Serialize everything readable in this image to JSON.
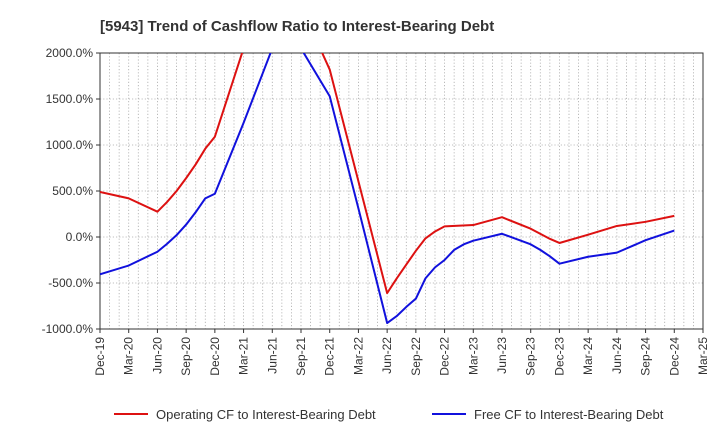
{
  "chart_data": {
    "type": "line",
    "title": "[5943]  Trend of Cashflow Ratio to Interest-Bearing Debt",
    "xlabel": "",
    "ylabel": "",
    "ylim": [
      -1000,
      2000
    ],
    "y_ticks": [
      "2000.0%",
      "1500.0%",
      "1000.0%",
      "500.0%",
      "0.0%",
      "-500.0%",
      "-1000.0%"
    ],
    "y_tick_values": [
      2000,
      1500,
      1000,
      500,
      0,
      -500,
      -1000
    ],
    "x_ticks": [
      "Dec-19",
      "Mar-20",
      "Jun-20",
      "Sep-20",
      "Dec-20",
      "Mar-21",
      "Jun-21",
      "Sep-21",
      "Dec-21",
      "Mar-22",
      "Jun-22",
      "Sep-22",
      "Dec-22",
      "Mar-23",
      "Jun-23",
      "Sep-23",
      "Dec-23",
      "Mar-24",
      "Jun-24",
      "Sep-24",
      "Dec-24",
      "Mar-25"
    ],
    "x_quarters": [
      "Dec-19",
      "Jan-20",
      "Feb-20",
      "Mar-20",
      "Apr-20",
      "May-20",
      "Jun-20",
      "Jul-20",
      "Aug-20",
      "Sep-20",
      "Oct-20",
      "Nov-20",
      "Dec-20",
      "Jan-21",
      "Feb-21",
      "Mar-21",
      "Apr-21",
      "May-21",
      "Jun-21",
      "Jul-21",
      "Aug-21",
      "Sep-21",
      "Oct-21",
      "Nov-21",
      "Dec-21",
      "Jan-22",
      "Feb-22",
      "Mar-22",
      "Apr-22",
      "May-22",
      "Jun-22",
      "Jul-22",
      "Aug-22",
      "Sep-22",
      "Oct-22",
      "Nov-22",
      "Dec-22",
      "Jan-23",
      "Feb-23",
      "Mar-23",
      "Apr-23",
      "May-23",
      "Jun-23",
      "Jul-23",
      "Aug-23",
      "Sep-23",
      "Oct-23",
      "Nov-23",
      "Dec-23",
      "Jan-24",
      "Feb-24",
      "Mar-24",
      "Apr-24",
      "May-24",
      "Jun-24",
      "Jul-24",
      "Aug-24",
      "Sep-24",
      "Oct-24",
      "Nov-24",
      "Dec-24",
      "Jan-25",
      "Feb-25",
      "Mar-25"
    ],
    "grid": true,
    "legend_position": "bottom",
    "series": [
      {
        "name": "Operating CF to Interest-Bearing Debt",
        "color": "#dd1111",
        "points": [
          {
            "x": "Dec-19",
            "y": 490
          },
          {
            "x": "Mar-20",
            "y": 420
          },
          {
            "x": "Jun-20",
            "y": 275
          },
          {
            "x": "Jul-20",
            "y": 380
          },
          {
            "x": "Aug-20",
            "y": 500
          },
          {
            "x": "Sep-20",
            "y": 640
          },
          {
            "x": "Oct-20",
            "y": 790
          },
          {
            "x": "Nov-20",
            "y": 960
          },
          {
            "x": "Dec-20",
            "y": 1090
          },
          {
            "x": "Mar-21",
            "y": 2050
          },
          {
            "x": "Nov-21",
            "y": 2050
          },
          {
            "x": "Dec-21",
            "y": 1820
          },
          {
            "x": "Jun-22",
            "y": -610
          },
          {
            "x": "Jul-22",
            "y": -450
          },
          {
            "x": "Aug-22",
            "y": -300
          },
          {
            "x": "Sep-22",
            "y": -150
          },
          {
            "x": "Oct-22",
            "y": -15
          },
          {
            "x": "Nov-22",
            "y": 60
          },
          {
            "x": "Dec-22",
            "y": 115
          },
          {
            "x": "Mar-23",
            "y": 130
          },
          {
            "x": "Jun-23",
            "y": 215
          },
          {
            "x": "Sep-23",
            "y": 90
          },
          {
            "x": "Nov-23",
            "y": -20
          },
          {
            "x": "Dec-23",
            "y": -65
          },
          {
            "x": "Mar-24",
            "y": 25
          },
          {
            "x": "Jun-24",
            "y": 120
          },
          {
            "x": "Sep-24",
            "y": 165
          },
          {
            "x": "Dec-24",
            "y": 230
          }
        ]
      },
      {
        "name": "Free CF to Interest-Bearing Debt",
        "color": "#1111dd",
        "points": [
          {
            "x": "Dec-19",
            "y": -405
          },
          {
            "x": "Mar-20",
            "y": -310
          },
          {
            "x": "Jun-20",
            "y": -160
          },
          {
            "x": "Jul-20",
            "y": -75
          },
          {
            "x": "Aug-20",
            "y": 20
          },
          {
            "x": "Sep-20",
            "y": 135
          },
          {
            "x": "Oct-20",
            "y": 270
          },
          {
            "x": "Nov-20",
            "y": 420
          },
          {
            "x": "Dec-20",
            "y": 470
          },
          {
            "x": "Mar-21",
            "y": 1240
          },
          {
            "x": "Jun-21",
            "y": 2050
          },
          {
            "x": "Sep-21",
            "y": 2050
          },
          {
            "x": "Dec-21",
            "y": 1530
          },
          {
            "x": "Mar-22",
            "y": 310
          },
          {
            "x": "Jun-22",
            "y": -935
          },
          {
            "x": "Jul-22",
            "y": -860
          },
          {
            "x": "Aug-22",
            "y": -760
          },
          {
            "x": "Sep-22",
            "y": -670
          },
          {
            "x": "Oct-22",
            "y": -450
          },
          {
            "x": "Nov-22",
            "y": -330
          },
          {
            "x": "Dec-22",
            "y": -250
          },
          {
            "x": "Jan-23",
            "y": -140
          },
          {
            "x": "Feb-23",
            "y": -80
          },
          {
            "x": "Mar-23",
            "y": -40
          },
          {
            "x": "Jun-23",
            "y": 35
          },
          {
            "x": "Sep-23",
            "y": -80
          },
          {
            "x": "Oct-23",
            "y": -140
          },
          {
            "x": "Nov-23",
            "y": -210
          },
          {
            "x": "Dec-23",
            "y": -290
          },
          {
            "x": "Mar-24",
            "y": -215
          },
          {
            "x": "Jun-24",
            "y": -170
          },
          {
            "x": "Sep-24",
            "y": -35
          },
          {
            "x": "Dec-24",
            "y": 70
          }
        ]
      }
    ]
  }
}
